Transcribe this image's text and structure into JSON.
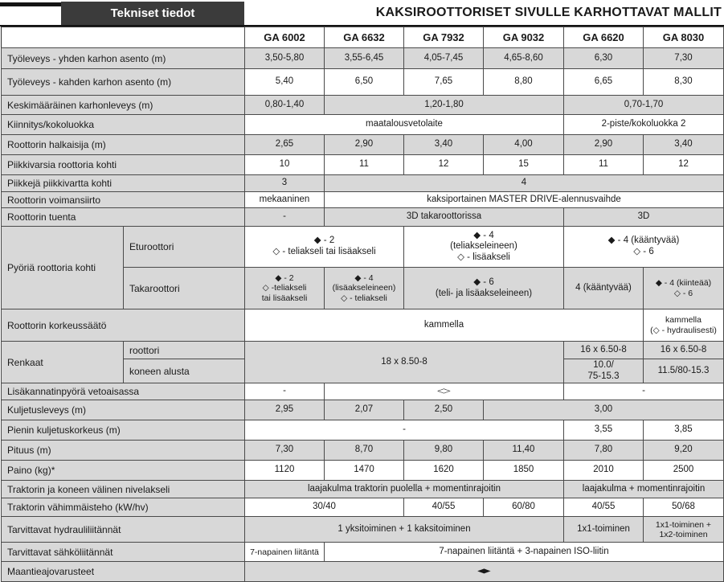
{
  "header": {
    "left_title": "Tekniset tiedot",
    "right_title": "KAKSIROOTTORISET SIVULLE KARHOTTAVAT MALLIT"
  },
  "colors": {
    "row_shade": "#d8d8d8",
    "band_box": "#3b3b3b",
    "border": "#4a4a4a"
  },
  "icons": {
    "filled_diamond": "◆",
    "open_diamond": "◇"
  },
  "table": {
    "models": [
      "GA 6002",
      "GA 6632",
      "GA 7932",
      "GA 9032",
      "GA 6620",
      "GA 8030"
    ],
    "rows": [
      {
        "label": "Työleveys - yhden karhon asento (m)",
        "cells": [
          {
            "text": "3,50-5,80"
          },
          {
            "text": "3,55-6,45"
          },
          {
            "text": "4,05-7,45"
          },
          {
            "text": "4,65-8,60"
          },
          {
            "text": "6,30"
          },
          {
            "text": "7,30"
          }
        ]
      },
      {
        "label": "Työleveys - kahden karhon asento (m)",
        "cells": [
          {
            "text": "5,40"
          },
          {
            "text": "6,50"
          },
          {
            "text": "7,65"
          },
          {
            "text": "8,80"
          },
          {
            "text": "6,65"
          },
          {
            "text": "8,30"
          }
        ]
      },
      {
        "label": "Keskimääräinen karhonleveys (m)",
        "cells": [
          {
            "text": "0,80-1,40"
          },
          {
            "text": "1,20-1,80",
            "span": 3
          },
          {
            "text": "0,70-1,70",
            "span": 2
          }
        ]
      },
      {
        "label": "Kiinnitys/kokoluokka",
        "cells": [
          {
            "text": "maatalousvetolaite",
            "span": 4
          },
          {
            "text": "2-piste/kokoluokka 2",
            "span": 2
          }
        ]
      },
      {
        "label": "Roottorin halkaisija (m)",
        "cells": [
          {
            "text": "2,65"
          },
          {
            "text": "2,90"
          },
          {
            "text": "3,40"
          },
          {
            "text": "4,00"
          },
          {
            "text": "2,90"
          },
          {
            "text": "3,40"
          }
        ]
      },
      {
        "label": "Piikkivarsia roottoria kohti",
        "cells": [
          {
            "text": "10"
          },
          {
            "text": "11"
          },
          {
            "text": "12"
          },
          {
            "text": "15"
          },
          {
            "text": "11"
          },
          {
            "text": "12"
          }
        ]
      },
      {
        "label": "Piikkejä piikkivartta kohti",
        "cells": [
          {
            "text": "3"
          },
          {
            "text": "4",
            "span": 5
          }
        ]
      },
      {
        "label": "Roottorin voimansiirto",
        "cells": [
          {
            "text": "mekaaninen"
          },
          {
            "text": "kaksiportainen MASTER DRIVE-alennusvaihde",
            "span": 5
          }
        ]
      },
      {
        "label": "Roottorin tuenta",
        "cells": [
          {
            "text": "-"
          },
          {
            "text": "3D takaroottorissa",
            "span": 3
          },
          {
            "text": "3D",
            "span": 2
          }
        ]
      },
      {
        "group": "Pyöriä roottoria kohti",
        "group_rows": 2,
        "sublabel": "Eturoottori",
        "cells": [
          {
            "text": "◆ - 2\n◇ - teliakseli tai lisäakseli",
            "span": 2
          },
          {
            "text": "◆ - 4\n(teliakseleineen)\n◇ - lisäakseli",
            "span": 2
          },
          {
            "text": "◆ - 4 (kääntyvää)\n◇ - 6",
            "span": 2
          }
        ]
      },
      {
        "sublabel": "Takaroottori",
        "cells": [
          {
            "text": "◆ - 2\n◇ -teliakseli\ntai lisäakseli"
          },
          {
            "text": "◆ - 4\n(lisäakseleineen)\n◇ - teliakseli"
          },
          {
            "text": "◆ - 6\n(teli- ja lisäakseleineen)",
            "span": 2
          },
          {
            "text": "4 (kääntyvää)"
          },
          {
            "text": "◆ - 4 (kiinteää)\n◇ - 6"
          }
        ]
      },
      {
        "label": "Roottorin korkeussäätö",
        "cells": [
          {
            "text": "kammella",
            "span": 5
          },
          {
            "text": "kammella\n(◇ - hydraulisesti)"
          }
        ]
      },
      {
        "group": "Renkaat",
        "group_rows": 2,
        "sublabel": "roottori",
        "cells": [
          {
            "text": "18 x 8.50-8",
            "span": 4,
            "rows": 2
          },
          {
            "text": "16 x 6.50-8"
          },
          {
            "text": "16 x 6.50-8"
          }
        ]
      },
      {
        "sublabel": "koneen alusta",
        "cells": [
          {
            "text": "10.0/\n75-15.3"
          },
          {
            "text": "11.5/80-15.3"
          }
        ]
      },
      {
        "label": "Lisäkannatinpyörä vetoaisassa",
        "cells": [
          {
            "text": "-"
          },
          {
            "text": "◇",
            "span": 3
          },
          {
            "text": "-",
            "span": 2
          }
        ]
      },
      {
        "label": "Kuljetusleveys (m)",
        "cells": [
          {
            "text": "2,95"
          },
          {
            "text": "2,07"
          },
          {
            "text": "2,50"
          },
          {
            "text": "3,00",
            "span": 3
          }
        ]
      },
      {
        "label": "Pienin kuljetuskorkeus (m)",
        "cells": [
          {
            "text": "-",
            "span": 4
          },
          {
            "text": "3,55"
          },
          {
            "text": "3,85"
          }
        ]
      },
      {
        "label": "Pituus (m)",
        "cells": [
          {
            "text": "7,30"
          },
          {
            "text": "8,70"
          },
          {
            "text": "9,80"
          },
          {
            "text": "11,40"
          },
          {
            "text": "7,80"
          },
          {
            "text": "9,20"
          }
        ]
      },
      {
        "label": "Paino (kg)*",
        "cells": [
          {
            "text": "1120"
          },
          {
            "text": "1470"
          },
          {
            "text": "1620"
          },
          {
            "text": "1850"
          },
          {
            "text": "2010"
          },
          {
            "text": "2500"
          }
        ]
      },
      {
        "label": "Traktorin ja koneen välinen nivelakseli",
        "cells": [
          {
            "text": "laajakulma traktorin puolella + momentinrajoitin",
            "span": 4
          },
          {
            "text": "laajakulma + momentinrajoitin",
            "span": 2
          }
        ]
      },
      {
        "label": "Traktorin vähimmäisteho (kW/hv)",
        "cells": [
          {
            "text": "30/40",
            "span": 2
          },
          {
            "text": "40/55"
          },
          {
            "text": "60/80"
          },
          {
            "text": "40/55"
          },
          {
            "text": "50/68"
          }
        ]
      },
      {
        "label": "Tarvittavat hydrauliliitännät",
        "cells": [
          {
            "text": "1 yksitoiminen + 1 kaksitoiminen",
            "span": 4
          },
          {
            "text": "1x1-toiminen"
          },
          {
            "text": "1x1-toiminen +\n1x2-toiminen"
          }
        ]
      },
      {
        "label": "Tarvittavat sähköliitännät",
        "cells": [
          {
            "text": "7-napainen liitäntä"
          },
          {
            "text": "7-napainen liitäntä + 3-napainen ISO-liitin",
            "span": 5
          }
        ]
      },
      {
        "label": "Maantieajovarusteet",
        "cells": [
          {
            "text": "◆",
            "span": 6
          }
        ]
      }
    ]
  }
}
